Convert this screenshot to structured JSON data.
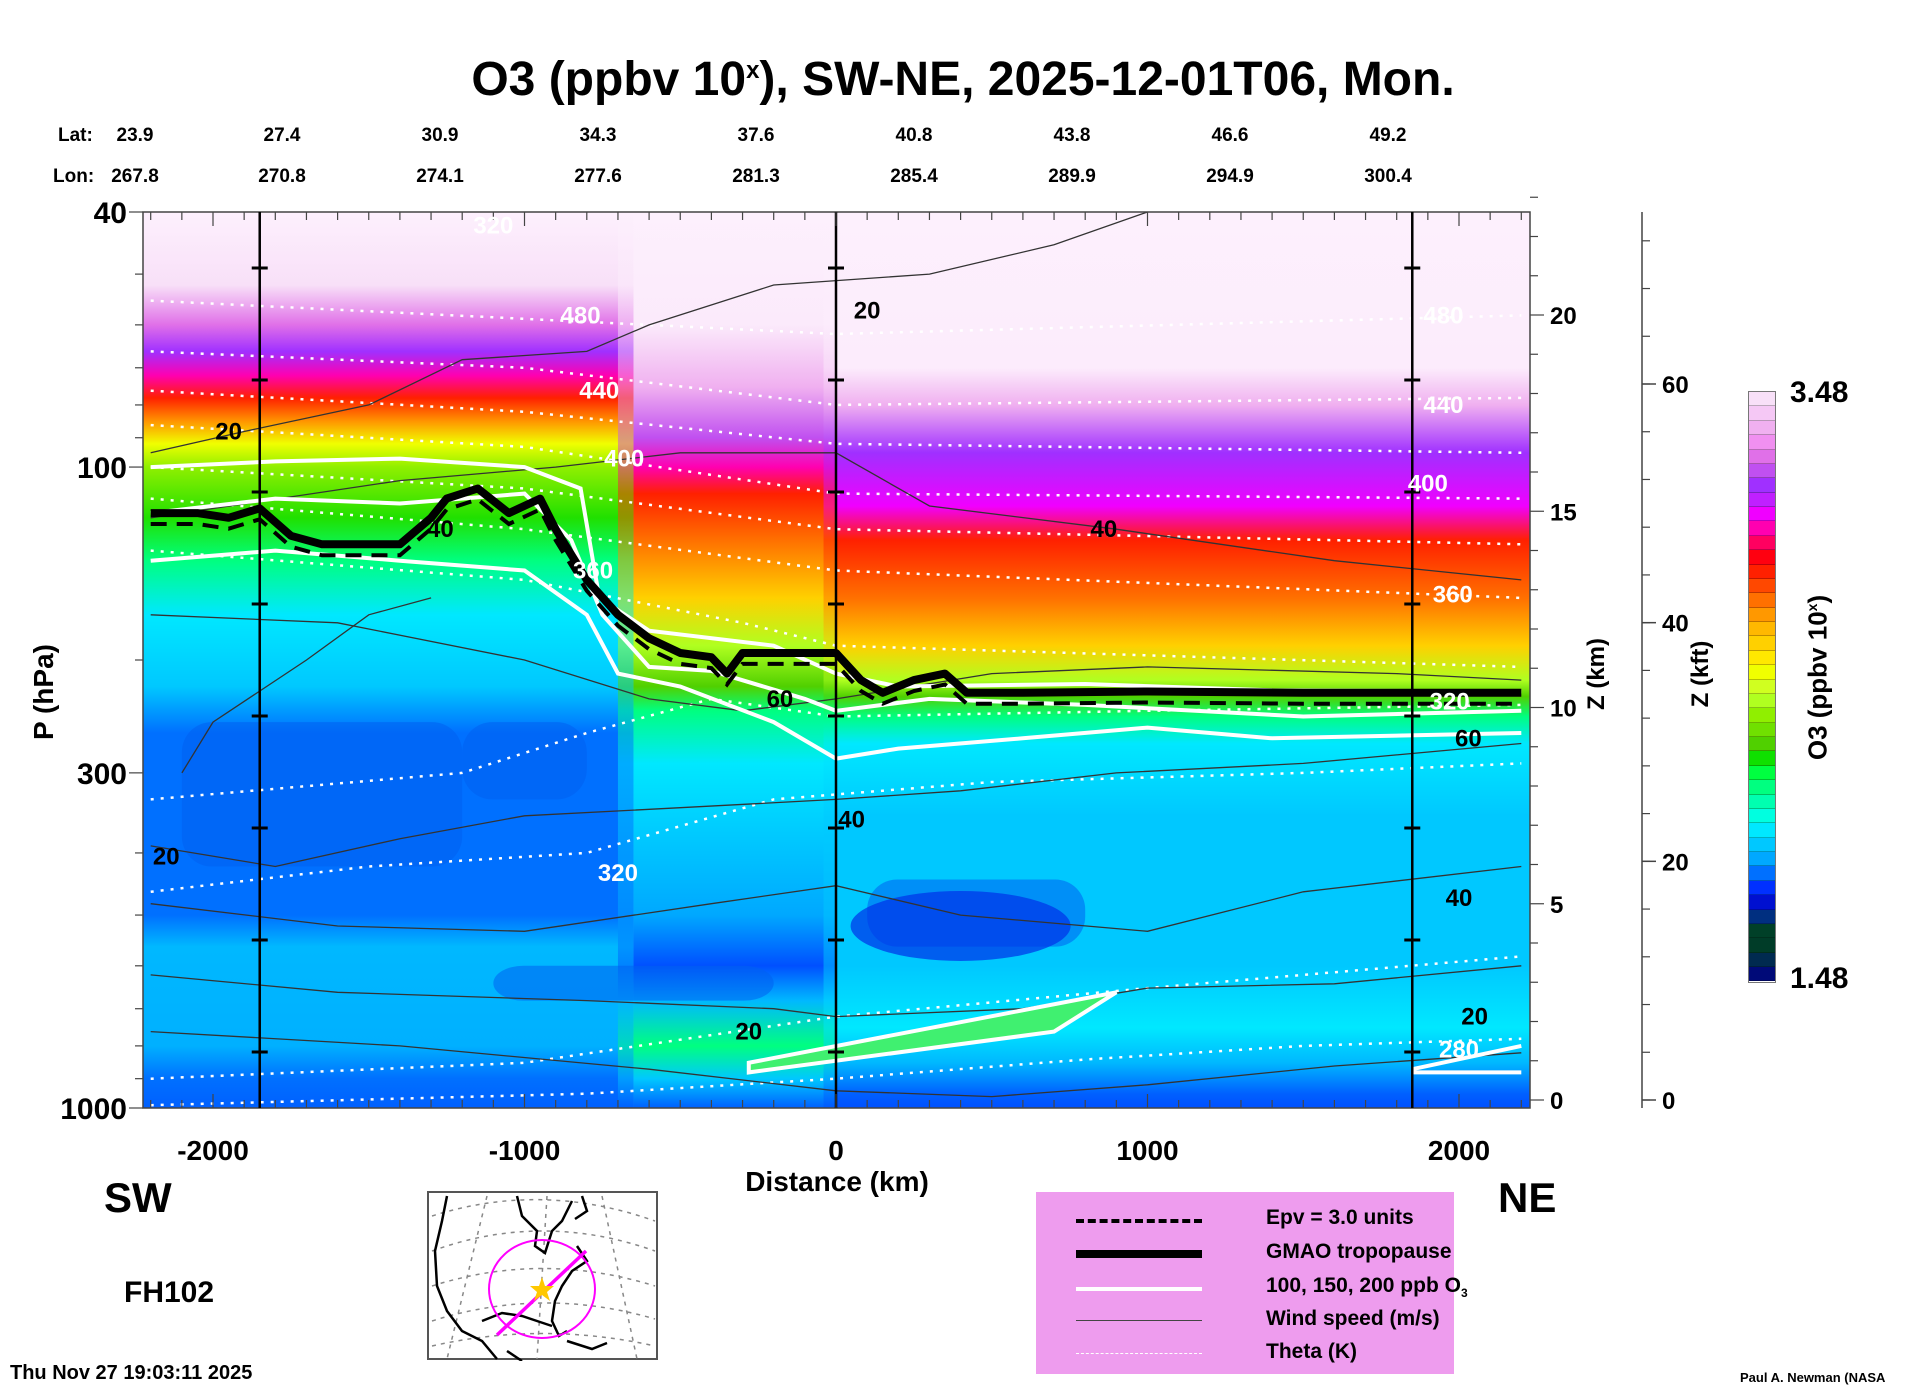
{
  "chart_data": {
    "type": "heatmap",
    "title": "O3 (ppbv 10",
    "title_sup": "x",
    "title_rest": "), SW-NE, 2025-12-01T06, Mon.",
    "xlabel": "Distance (km)",
    "ylabel": "P (hPa)",
    "xlim": [
      -2200,
      2200
    ],
    "ylim": [
      1000,
      40
    ],
    "y_scale": "log",
    "x_ticks": [
      -2000,
      -1000,
      0,
      1000,
      2000
    ],
    "x_tick_labels": [
      "-2000",
      "-1000",
      "0",
      "1000",
      "2000"
    ],
    "y_ticks": [
      40,
      100,
      300,
      1000
    ],
    "y_tick_labels": [
      "40",
      "100",
      "300",
      "1000"
    ],
    "right_axis_km": {
      "label": "Z (km)",
      "ticks": [
        0,
        5,
        10,
        15,
        20
      ],
      "tick_labels": [
        "0",
        "5",
        "10",
        "15",
        "20"
      ]
    },
    "right_axis_kft": {
      "label": "Z (kft)",
      "ticks": [
        0,
        20,
        40,
        60
      ],
      "tick_labels": [
        "0",
        "20",
        "40",
        "60"
      ]
    },
    "colorbar": {
      "label": "O3 (ppbv 10",
      "label_sup": "x",
      "label_end": ")",
      "min": 1.48,
      "max": 3.48,
      "min_label": "1.48",
      "max_label": "3.48",
      "colors": [
        "#000a78",
        "#002a50",
        "#003c28",
        "#004028",
        "#002f80",
        "#0010d0",
        "#0030ff",
        "#0070ff",
        "#00a8ff",
        "#00c8ff",
        "#00e8ff",
        "#00ffe0",
        "#00ffb0",
        "#00ff80",
        "#00ff40",
        "#10e000",
        "#50d000",
        "#70e000",
        "#90ef00",
        "#b0ff20",
        "#d0ff20",
        "#f0ff00",
        "#ffe800",
        "#ffd000",
        "#ffb800",
        "#ff9800",
        "#ff7000",
        "#ff4800",
        "#ff2000",
        "#ff0010",
        "#ff0060",
        "#ff00b0",
        "#f000ff",
        "#c020ff",
        "#a030ff",
        "#c050f0",
        "#e070e8",
        "#f090f0",
        "#f0b0f0",
        "#f5c8f5",
        "#f8e0f8"
      ]
    },
    "lat_labels": [
      "23.9",
      "27.4",
      "30.9",
      "34.3",
      "37.6",
      "40.8",
      "43.8",
      "46.6",
      "49.2"
    ],
    "lon_labels": [
      "267.8",
      "270.8",
      "274.1",
      "277.6",
      "281.3",
      "285.4",
      "289.9",
      "294.9",
      "300.4"
    ],
    "lat_prefix": "Lat:",
    "lon_prefix": "Lon:",
    "vertical_markers_km": [
      -1850,
      0,
      1850
    ],
    "contour_labels": {
      "theta": [
        {
          "text": "320",
          "x": -1100,
          "p": 42
        },
        {
          "text": "480",
          "x": -820,
          "p": 58
        },
        {
          "text": "440",
          "x": -760,
          "p": 76
        },
        {
          "text": "400",
          "x": -680,
          "p": 97
        },
        {
          "text": "360",
          "x": -780,
          "p": 145
        },
        {
          "text": "320",
          "x": -700,
          "p": 430
        },
        {
          "text": "480",
          "x": 1950,
          "p": 58
        },
        {
          "text": "440",
          "x": 1950,
          "p": 80
        },
        {
          "text": "400",
          "x": 1900,
          "p": 106
        },
        {
          "text": "360",
          "x": 1980,
          "p": 158
        },
        {
          "text": "320",
          "x": 1970,
          "p": 232
        },
        {
          "text": "280",
          "x": 2000,
          "p": 810
        }
      ],
      "wind": [
        {
          "text": "20",
          "x": -1950,
          "p": 88
        },
        {
          "text": "40",
          "x": -1270,
          "p": 125
        },
        {
          "text": "60",
          "x": -180,
          "p": 230
        },
        {
          "text": "20",
          "x": -2150,
          "p": 405
        },
        {
          "text": "40",
          "x": 50,
          "p": 355
        },
        {
          "text": "20",
          "x": -280,
          "p": 760
        },
        {
          "text": "20",
          "x": 100,
          "p": 57
        },
        {
          "text": "40",
          "x": 860,
          "p": 125
        },
        {
          "text": "60",
          "x": 2030,
          "p": 265
        },
        {
          "text": "40",
          "x": 2000,
          "p": 470
        },
        {
          "text": "20",
          "x": 2050,
          "p": 720
        }
      ]
    },
    "tropopause": [
      [
        -2200,
        118
      ],
      [
        -2050,
        118
      ],
      [
        -1950,
        120
      ],
      [
        -1850,
        116
      ],
      [
        -1750,
        128
      ],
      [
        -1650,
        132
      ],
      [
        -1400,
        132
      ],
      [
        -1300,
        120
      ],
      [
        -1250,
        112
      ],
      [
        -1150,
        108
      ],
      [
        -1050,
        118
      ],
      [
        -950,
        112
      ],
      [
        -900,
        125
      ],
      [
        -800,
        150
      ],
      [
        -700,
        170
      ],
      [
        -600,
        185
      ],
      [
        -500,
        195
      ],
      [
        -400,
        198
      ],
      [
        -350,
        210
      ],
      [
        -300,
        195
      ],
      [
        -200,
        195
      ],
      [
        0,
        195
      ],
      [
        80,
        215
      ],
      [
        150,
        225
      ],
      [
        250,
        215
      ],
      [
        350,
        210
      ],
      [
        420,
        225
      ],
      [
        600,
        225
      ],
      [
        1000,
        224
      ],
      [
        1500,
        225
      ],
      [
        2200,
        225
      ]
    ],
    "ppb_200": [
      [
        -2200,
        100
      ],
      [
        -1800,
        98
      ],
      [
        -1400,
        97
      ],
      [
        -1000,
        100
      ],
      [
        -820,
        108
      ],
      [
        -760,
        160
      ],
      [
        -600,
        180
      ],
      [
        -200,
        190
      ],
      [
        0,
        210
      ],
      [
        200,
        220
      ],
      [
        800,
        218
      ],
      [
        1400,
        223
      ],
      [
        2200,
        224
      ]
    ],
    "ppb_150": [
      [
        -2200,
        118
      ],
      [
        -1800,
        112
      ],
      [
        -1400,
        114
      ],
      [
        -1000,
        110
      ],
      [
        -850,
        130
      ],
      [
        -750,
        170
      ],
      [
        -600,
        205
      ],
      [
        -400,
        208
      ],
      [
        -100,
        230
      ],
      [
        0,
        240
      ],
      [
        300,
        230
      ],
      [
        800,
        235
      ],
      [
        1500,
        245
      ],
      [
        2200,
        240
      ]
    ],
    "ppb_100": [
      [
        -2200,
        140
      ],
      [
        -1800,
        135
      ],
      [
        -1400,
        140
      ],
      [
        -1000,
        145
      ],
      [
        -800,
        170
      ],
      [
        -700,
        210
      ],
      [
        -500,
        220
      ],
      [
        -200,
        250
      ],
      [
        0,
        285
      ],
      [
        200,
        275
      ],
      [
        600,
        265
      ],
      [
        1000,
        255
      ],
      [
        1400,
        265
      ],
      [
        2200,
        260
      ]
    ]
  },
  "labels": {
    "sw": "SW",
    "ne": "NE",
    "forecast_hour": "FH102",
    "timestamp": "Thu Nov 27 19:03:11 2025",
    "credit": "Paul A. Newman (NASA"
  },
  "legend": {
    "items": [
      {
        "label": "Epv = 3.0 units",
        "style": "dashed"
      },
      {
        "label": "GMAO tropopause",
        "style": "thick"
      },
      {
        "label": "100, 150, 200 ppb O",
        "sub": "3",
        "style": "white"
      },
      {
        "label": "Wind speed (m/s)",
        "style": "thin"
      },
      {
        "label": "Theta (K)",
        "style": "dotted"
      }
    ]
  }
}
